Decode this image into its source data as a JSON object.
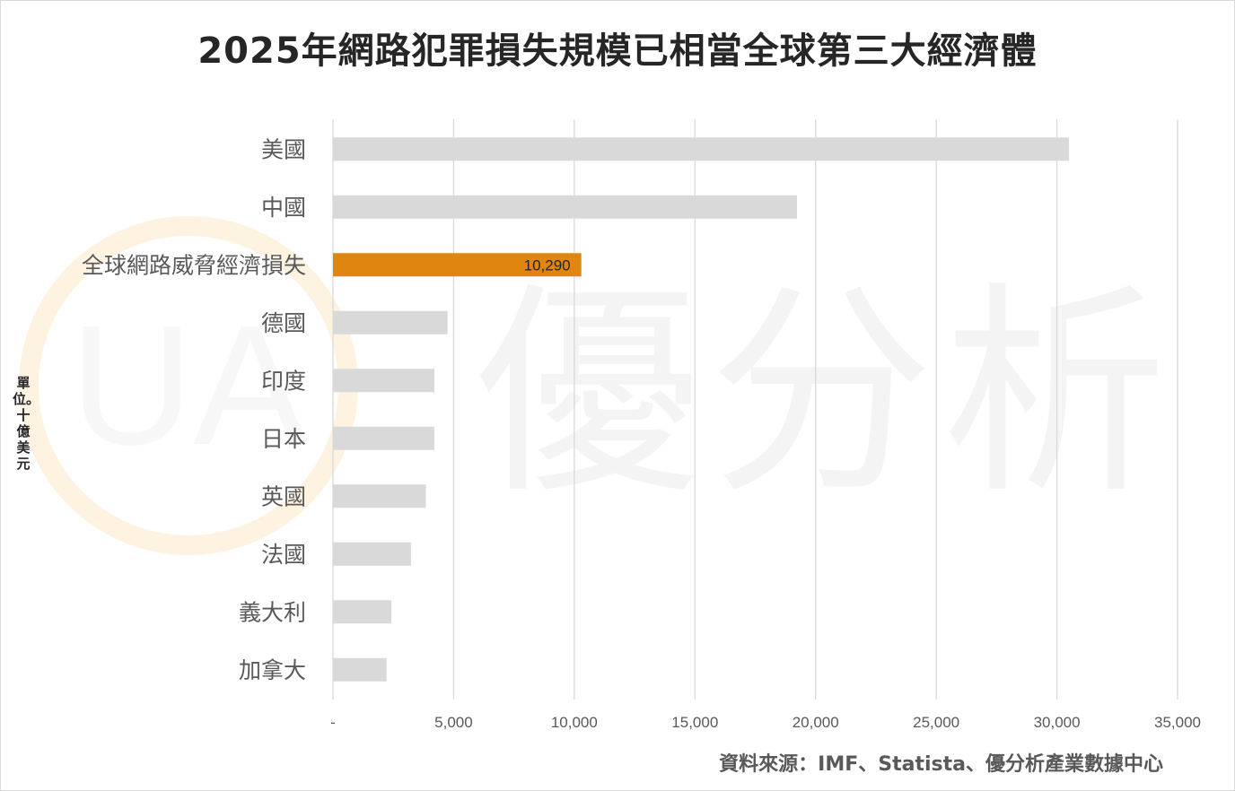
{
  "chart_data": {
    "type": "bar",
    "orientation": "horizontal",
    "title": "2025年網路犯罪損失規模已相當全球第三大經濟體",
    "unit_label": "單位。十億美元",
    "categories": [
      "美國",
      "中國",
      "全球網路威脅經濟損失",
      "德國",
      "印度",
      "日本",
      "英國",
      "法國",
      "義大利",
      "加拿大"
    ],
    "values": [
      30500,
      19230,
      10290,
      4750,
      4200,
      4200,
      3850,
      3230,
      2420,
      2220
    ],
    "highlight_index": 2,
    "data_labels": [
      null,
      null,
      "10,290",
      null,
      null,
      null,
      null,
      null,
      null,
      null
    ],
    "xlim": [
      0,
      35000
    ],
    "x_ticks": [
      0,
      5000,
      10000,
      15000,
      20000,
      25000,
      30000,
      35000
    ],
    "x_tick_labels": [
      "-",
      "5,000",
      "10,000",
      "15,000",
      "20,000",
      "25,000",
      "30,000",
      "35,000"
    ],
    "grid": true,
    "colors": {
      "bar": "#d9d9d9",
      "highlight": "#e0850f",
      "grid": "#d9d9d9",
      "label": "#595959",
      "watermark": "#f5f5f5",
      "watermark_accent": "#fdf3e0"
    },
    "source": "資料來源：IMF、Statista、優分析產業數據中心"
  },
  "watermark": {
    "text": "優分析",
    "logo_text": "UA"
  }
}
